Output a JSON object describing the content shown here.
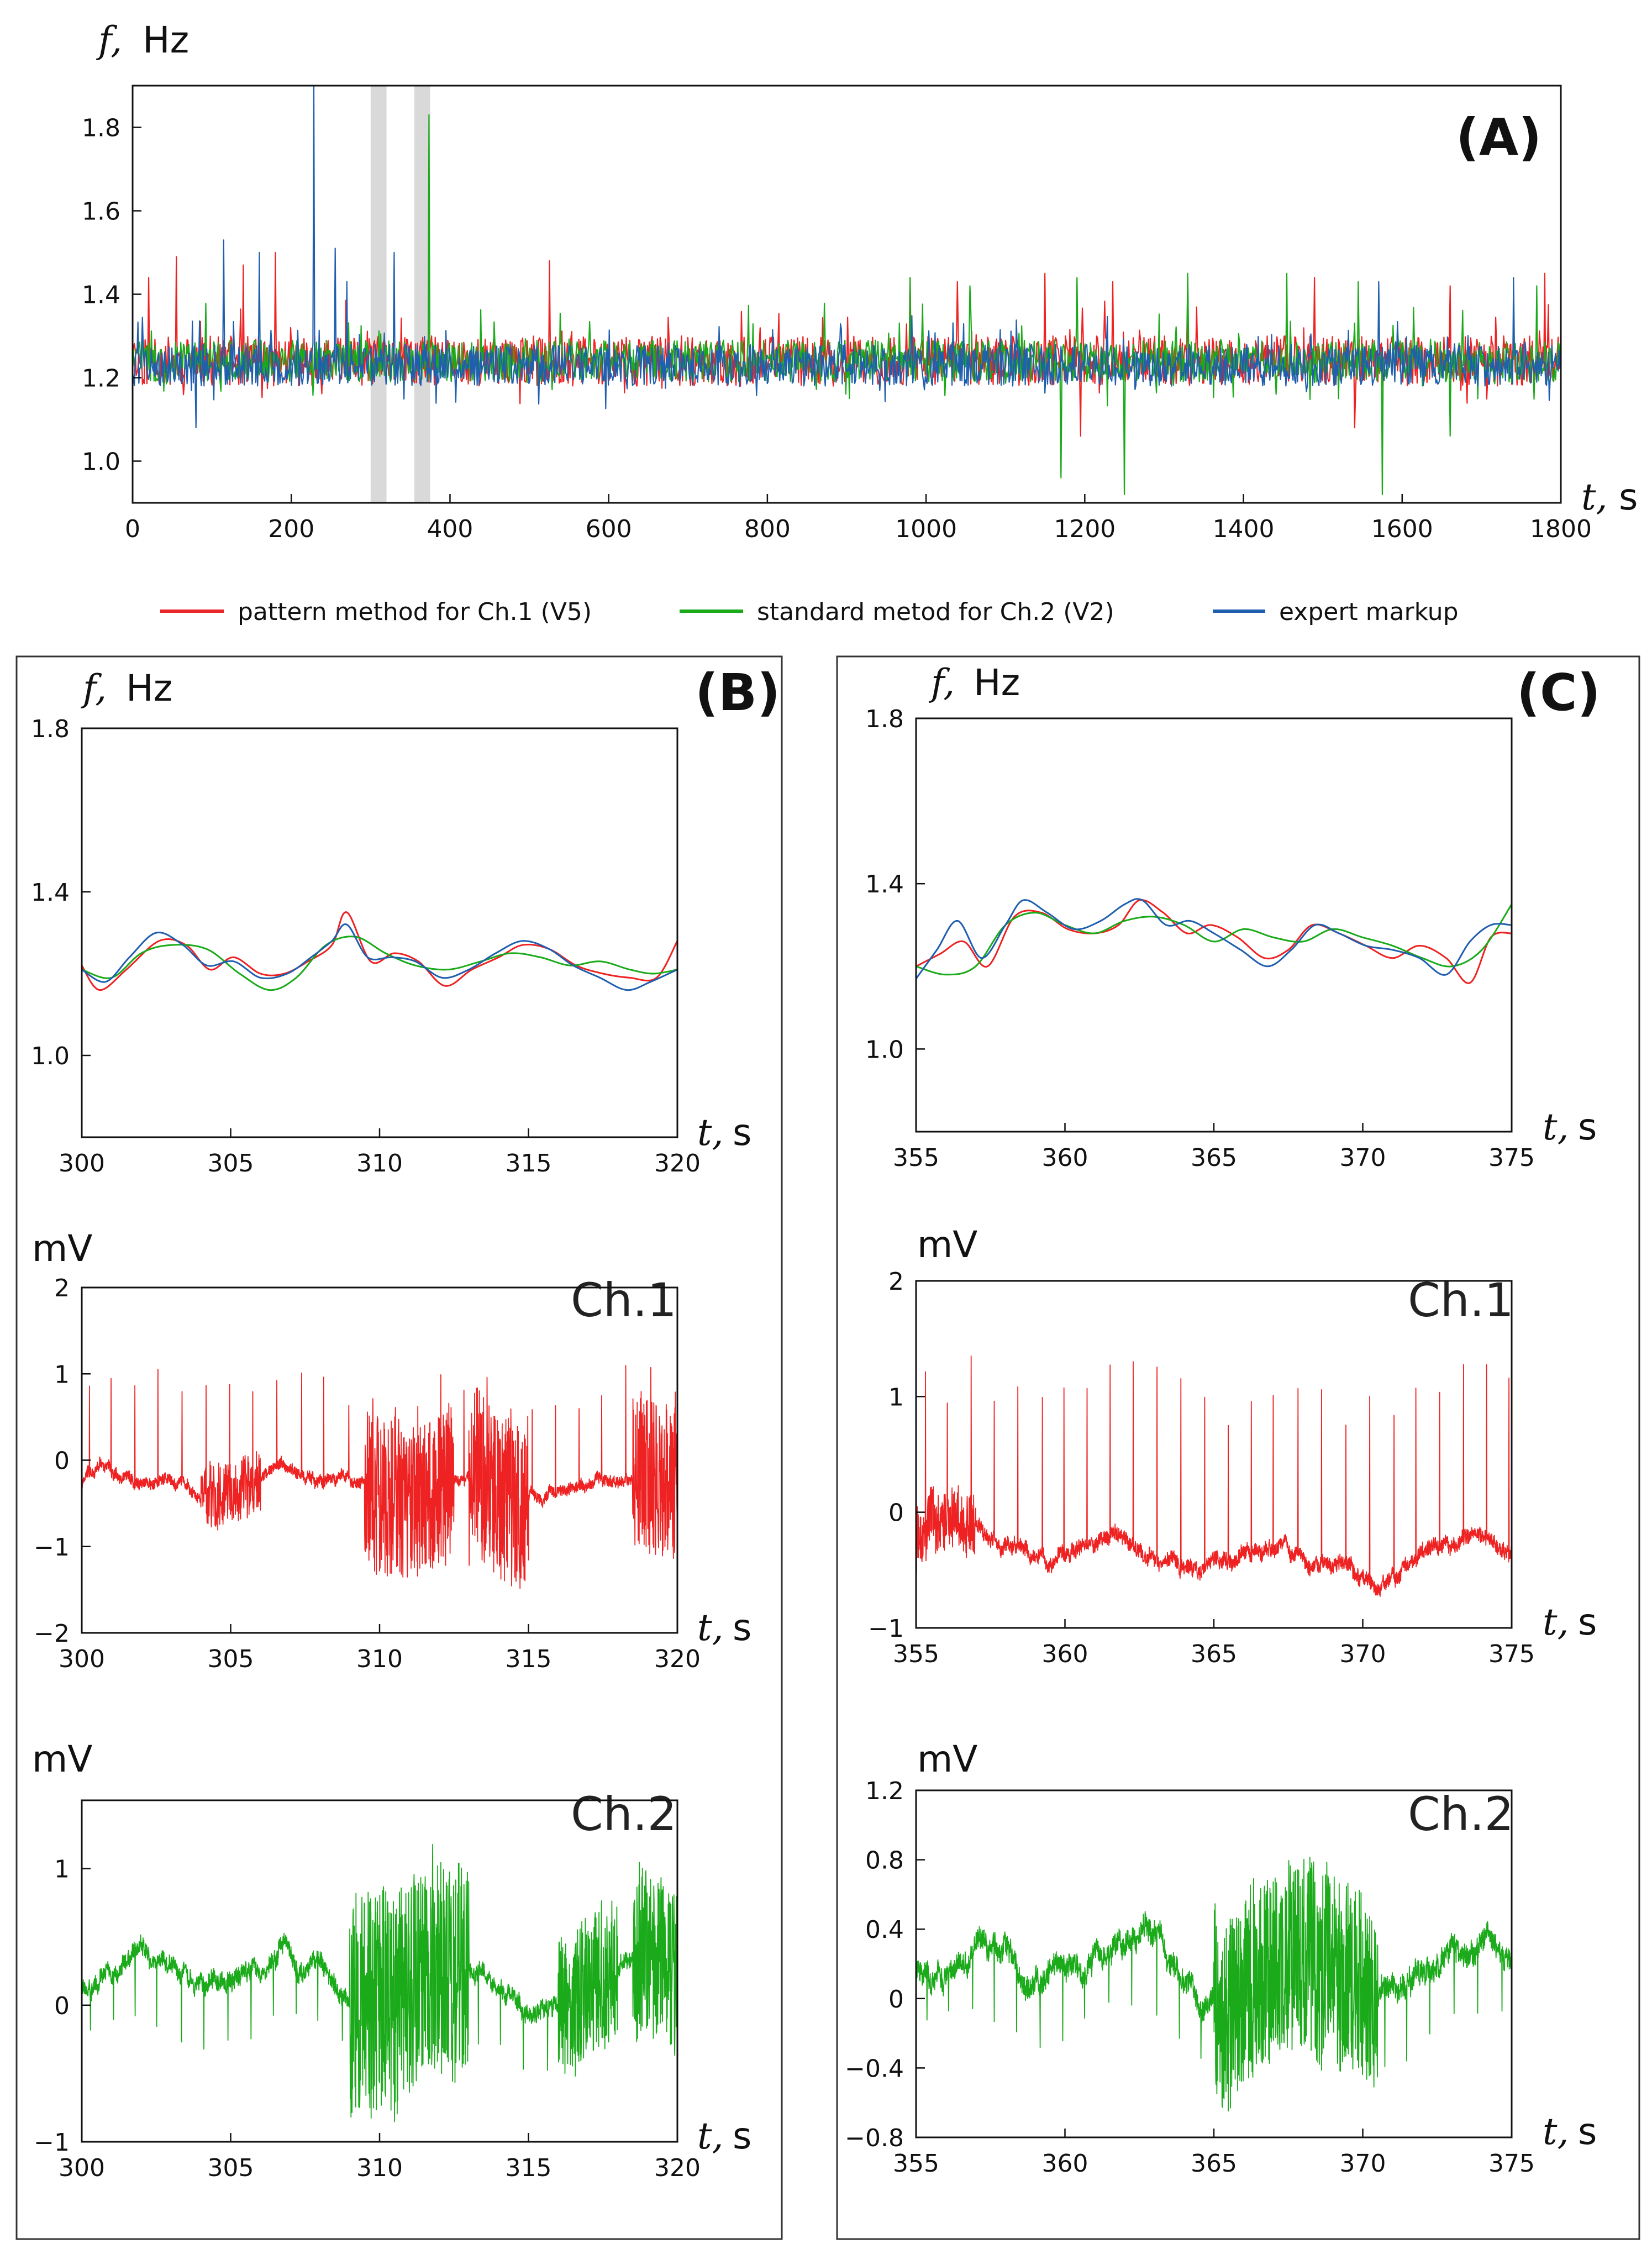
{
  "panels": {
    "A": "(A)",
    "B": "(B)",
    "C": "(C)"
  },
  "units": {
    "freq_var": "f,",
    "freq_unit": "Hz",
    "volt_unit": "mV",
    "time_var": "t,",
    "time_unit": "s"
  },
  "legend": [
    {
      "label": "pattern method for Ch.1 (V5)",
      "color": "#e8262a"
    },
    {
      "label": "standard metod for Ch.2 (V2)",
      "color": "#1aaa1a"
    },
    {
      "label": "expert markup",
      "color": "#1f5fae"
    }
  ],
  "colors": {
    "red": "#ee2222",
    "green": "#1aaa1a",
    "blue": "#1f5fae",
    "shade": "#d9d9d9"
  },
  "chart_data": [
    {
      "id": "A",
      "type": "line",
      "title": "(A)",
      "xlabel": "t, s",
      "ylabel": "f, Hz",
      "xlim": [
        0,
        1800
      ],
      "ylim": [
        0.9,
        1.9
      ],
      "xticks": [
        "0",
        "200",
        "400",
        "600",
        "800",
        "1000",
        "1200",
        "1400",
        "1600",
        "1800"
      ],
      "yticks": [
        "1.0",
        "1.2",
        "1.4",
        "1.6",
        "1.8"
      ],
      "shaded_intervals": [
        [
          300,
          320
        ],
        [
          355,
          375
        ]
      ],
      "series": [
        {
          "name": "pattern method for Ch.1 (V5)",
          "color": "#ee2222",
          "baseline": 1.24,
          "spread": 0.06,
          "spikes": [
            [
              20,
              1.44
            ],
            [
              55,
              1.49
            ],
            [
              140,
              1.47
            ],
            [
              180,
              1.5
            ],
            [
              525,
              1.48
            ],
            [
              980,
              1.44
            ],
            [
              1040,
              1.43
            ],
            [
              1150,
              1.45
            ],
            [
              1235,
              1.43
            ],
            [
              1330,
              1.44
            ],
            [
              1490,
              1.44
            ],
            [
              1660,
              1.42
            ],
            [
              1780,
              1.45
            ],
            [
              1195,
              1.06
            ],
            [
              1540,
              1.08
            ]
          ]
        },
        {
          "name": "standard metod for Ch.2 (V2)",
          "color": "#1aaa1a",
          "baseline": 1.24,
          "spread": 0.05,
          "spikes": [
            [
              374,
              1.83
            ],
            [
              980,
              1.44
            ],
            [
              1055,
              1.42
            ],
            [
              1190,
              1.44
            ],
            [
              1330,
              1.45
            ],
            [
              1455,
              1.45
            ],
            [
              1545,
              1.43
            ],
            [
              1770,
              1.42
            ],
            [
              1170,
              0.96
            ],
            [
              1250,
              0.92
            ],
            [
              1575,
              0.92
            ],
            [
              1660,
              1.06
            ]
          ]
        },
        {
          "name": "expert markup",
          "color": "#1f5fae",
          "baseline": 1.23,
          "spread": 0.05,
          "spikes": [
            [
              228,
              1.9
            ],
            [
              115,
              1.53
            ],
            [
              160,
              1.5
            ],
            [
              255,
              1.51
            ],
            [
              330,
              1.5
            ],
            [
              270,
              1.43
            ],
            [
              1570,
              1.43
            ],
            [
              1740,
              1.44
            ],
            [
              80,
              1.08
            ]
          ]
        }
      ]
    },
    {
      "id": "B-freq",
      "type": "line",
      "title": "(B)",
      "xlabel": "t, s",
      "ylabel": "f, Hz",
      "xlim": [
        300,
        320
      ],
      "ylim": [
        0.8,
        1.8
      ],
      "xticks": [
        "300",
        "305",
        "310",
        "315",
        "320"
      ],
      "yticks": [
        "1.0",
        "1.4",
        "1.8"
      ],
      "series": [
        {
          "name": "pattern method for Ch.1 (V5)",
          "color": "#ee2222",
          "x": [
            300,
            300.6,
            301.5,
            302.6,
            303.5,
            304.3,
            305.1,
            306,
            306.8,
            307.6,
            308.4,
            308.9,
            309.7,
            310.5,
            311.3,
            312.2,
            313.1,
            314,
            314.8,
            315.7,
            316.6,
            317.5,
            318.4,
            319.3,
            320
          ],
          "y": [
            1.22,
            1.16,
            1.21,
            1.28,
            1.27,
            1.21,
            1.24,
            1.2,
            1.2,
            1.23,
            1.27,
            1.35,
            1.23,
            1.25,
            1.23,
            1.17,
            1.21,
            1.24,
            1.27,
            1.26,
            1.22,
            1.2,
            1.19,
            1.19,
            1.28
          ]
        },
        {
          "name": "standard metod for Ch.2 (V2)",
          "color": "#1aaa1a",
          "x": [
            300,
            301,
            302,
            303,
            304.2,
            305.3,
            306.3,
            307.2,
            308.2,
            309.2,
            310.2,
            311.2,
            312.3,
            313.4,
            314.4,
            315.4,
            316.4,
            317.4,
            318.4,
            319.2,
            320
          ],
          "y": [
            1.21,
            1.19,
            1.25,
            1.27,
            1.26,
            1.2,
            1.16,
            1.19,
            1.27,
            1.29,
            1.25,
            1.22,
            1.21,
            1.23,
            1.25,
            1.24,
            1.22,
            1.23,
            1.21,
            1.2,
            1.21
          ]
        },
        {
          "name": "expert markup",
          "color": "#1f5fae",
          "x": [
            300,
            300.8,
            301.6,
            302.5,
            303.4,
            304.2,
            305.1,
            306,
            306.9,
            307.7,
            308.4,
            308.9,
            309.6,
            310.4,
            311.2,
            312.1,
            313,
            313.9,
            314.8,
            315.7,
            316.5,
            317.4,
            318.3,
            319.1,
            320
          ],
          "y": [
            1.21,
            1.18,
            1.24,
            1.3,
            1.27,
            1.22,
            1.23,
            1.19,
            1.2,
            1.24,
            1.28,
            1.32,
            1.24,
            1.24,
            1.23,
            1.19,
            1.21,
            1.25,
            1.28,
            1.26,
            1.22,
            1.19,
            1.16,
            1.18,
            1.21
          ]
        }
      ]
    },
    {
      "id": "B-ch1",
      "type": "line",
      "title": "Ch.1",
      "xlabel": "t, s",
      "ylabel": "mV",
      "xlim": [
        300,
        320
      ],
      "ylim": [
        -2,
        2
      ],
      "xticks": [
        "300",
        "305",
        "310",
        "315",
        "320"
      ],
      "yticks": [
        "-2",
        "-1",
        "0",
        "1",
        "2"
      ],
      "series": [
        {
          "name": "Ch.1",
          "color": "#ee2222",
          "baseline": -0.3,
          "spike_period": 0.78,
          "spike_height": 1.15,
          "noise_bursts": [
            [
              304,
              306,
              0.35
            ],
            [
              309.5,
              312.5,
              0.9
            ],
            [
              313,
              315,
              1.0
            ],
            [
              318.5,
              320,
              0.9
            ]
          ]
        }
      ]
    },
    {
      "id": "B-ch2",
      "type": "line",
      "title": "Ch.2",
      "xlabel": "t, s",
      "ylabel": "mV",
      "xlim": [
        300,
        320
      ],
      "ylim": [
        -1,
        1.5
      ],
      "xticks": [
        "300",
        "305",
        "310",
        "315",
        "320"
      ],
      "yticks": [
        "-1",
        "0",
        "1"
      ],
      "series": [
        {
          "name": "Ch.2",
          "color": "#1aaa1a",
          "baseline": 0.18,
          "spike_period": 0.78,
          "spike_height": -0.45,
          "noise_bursts": [
            [
              309,
              313,
              0.8
            ],
            [
              316,
              318,
              0.5
            ],
            [
              318.5,
              320,
              0.6
            ]
          ]
        }
      ]
    },
    {
      "id": "C-freq",
      "type": "line",
      "title": "(C)",
      "xlabel": "t, s",
      "ylabel": "f, Hz",
      "xlim": [
        355,
        375
      ],
      "ylim": [
        0.8,
        1.8
      ],
      "xticks": [
        "355",
        "360",
        "365",
        "370",
        "375"
      ],
      "yticks": [
        "1.0",
        "1.4",
        "1.8"
      ],
      "series": [
        {
          "name": "pattern method for Ch.1 (V5)",
          "color": "#ee2222",
          "x": [
            355,
            355.8,
            356.6,
            357.4,
            358.3,
            359.2,
            360.1,
            361,
            361.8,
            362.5,
            363.3,
            364.1,
            364.9,
            365.8,
            366.7,
            367.5,
            368.3,
            369.2,
            370.1,
            371,
            371.9,
            372.8,
            373.6,
            374.3,
            375
          ],
          "y": [
            1.2,
            1.23,
            1.26,
            1.2,
            1.32,
            1.33,
            1.29,
            1.28,
            1.3,
            1.36,
            1.33,
            1.28,
            1.3,
            1.27,
            1.22,
            1.24,
            1.3,
            1.28,
            1.25,
            1.22,
            1.25,
            1.22,
            1.16,
            1.27,
            1.28
          ]
        },
        {
          "name": "standard metod for Ch.2 (V2)",
          "color": "#1aaa1a",
          "x": [
            355,
            356,
            357,
            358,
            359,
            360,
            361,
            362,
            363,
            364,
            365,
            366,
            367,
            368,
            369,
            370,
            371,
            372,
            373,
            374,
            375
          ],
          "y": [
            1.2,
            1.18,
            1.2,
            1.3,
            1.33,
            1.3,
            1.28,
            1.31,
            1.32,
            1.3,
            1.26,
            1.29,
            1.27,
            1.26,
            1.29,
            1.27,
            1.25,
            1.22,
            1.2,
            1.24,
            1.35
          ]
        },
        {
          "name": "expert markup",
          "color": "#1f5fae",
          "x": [
            355,
            355.7,
            356.4,
            357.2,
            358,
            358.6,
            359.4,
            360.3,
            361.2,
            362,
            362.6,
            363.4,
            364.2,
            365,
            365.9,
            366.8,
            367.6,
            368.4,
            369.2,
            370.1,
            371,
            371.9,
            372.8,
            373.6,
            374.3,
            375
          ],
          "y": [
            1.17,
            1.24,
            1.31,
            1.22,
            1.3,
            1.36,
            1.33,
            1.29,
            1.31,
            1.35,
            1.36,
            1.3,
            1.31,
            1.28,
            1.24,
            1.2,
            1.24,
            1.3,
            1.28,
            1.25,
            1.24,
            1.22,
            1.18,
            1.26,
            1.3,
            1.3
          ]
        }
      ]
    },
    {
      "id": "C-ch1",
      "type": "line",
      "title": "Ch.1",
      "xlabel": "t, s",
      "ylabel": "mV",
      "xlim": [
        355,
        375
      ],
      "ylim": [
        -1,
        2
      ],
      "xticks": [
        "355",
        "360",
        "365",
        "370",
        "375"
      ],
      "yticks": [
        "-1",
        "0",
        "1",
        "2"
      ],
      "series": [
        {
          "name": "Ch.1",
          "color": "#ee2222",
          "baseline": -0.35,
          "spike_period": 0.78,
          "spike_height": 1.35,
          "noise_bursts": [
            [
              355,
              357,
              0.25
            ]
          ]
        }
      ]
    },
    {
      "id": "C-ch2",
      "type": "line",
      "title": "Ch.2",
      "xlabel": "t, s",
      "ylabel": "mV",
      "xlim": [
        355,
        375
      ],
      "ylim": [
        -0.8,
        1.2
      ],
      "xticks": [
        "355",
        "360",
        "365",
        "370",
        "375"
      ],
      "yticks": [
        "-0.8",
        "-0.4",
        "0",
        "0.4",
        "0.8",
        "1.2"
      ],
      "series": [
        {
          "name": "Ch.2",
          "color": "#1aaa1a",
          "baseline": 0.15,
          "spike_period": 0.78,
          "spike_height": -0.35,
          "noise_bursts": [
            [
              365,
              370.5,
              0.55
            ]
          ]
        }
      ]
    }
  ]
}
